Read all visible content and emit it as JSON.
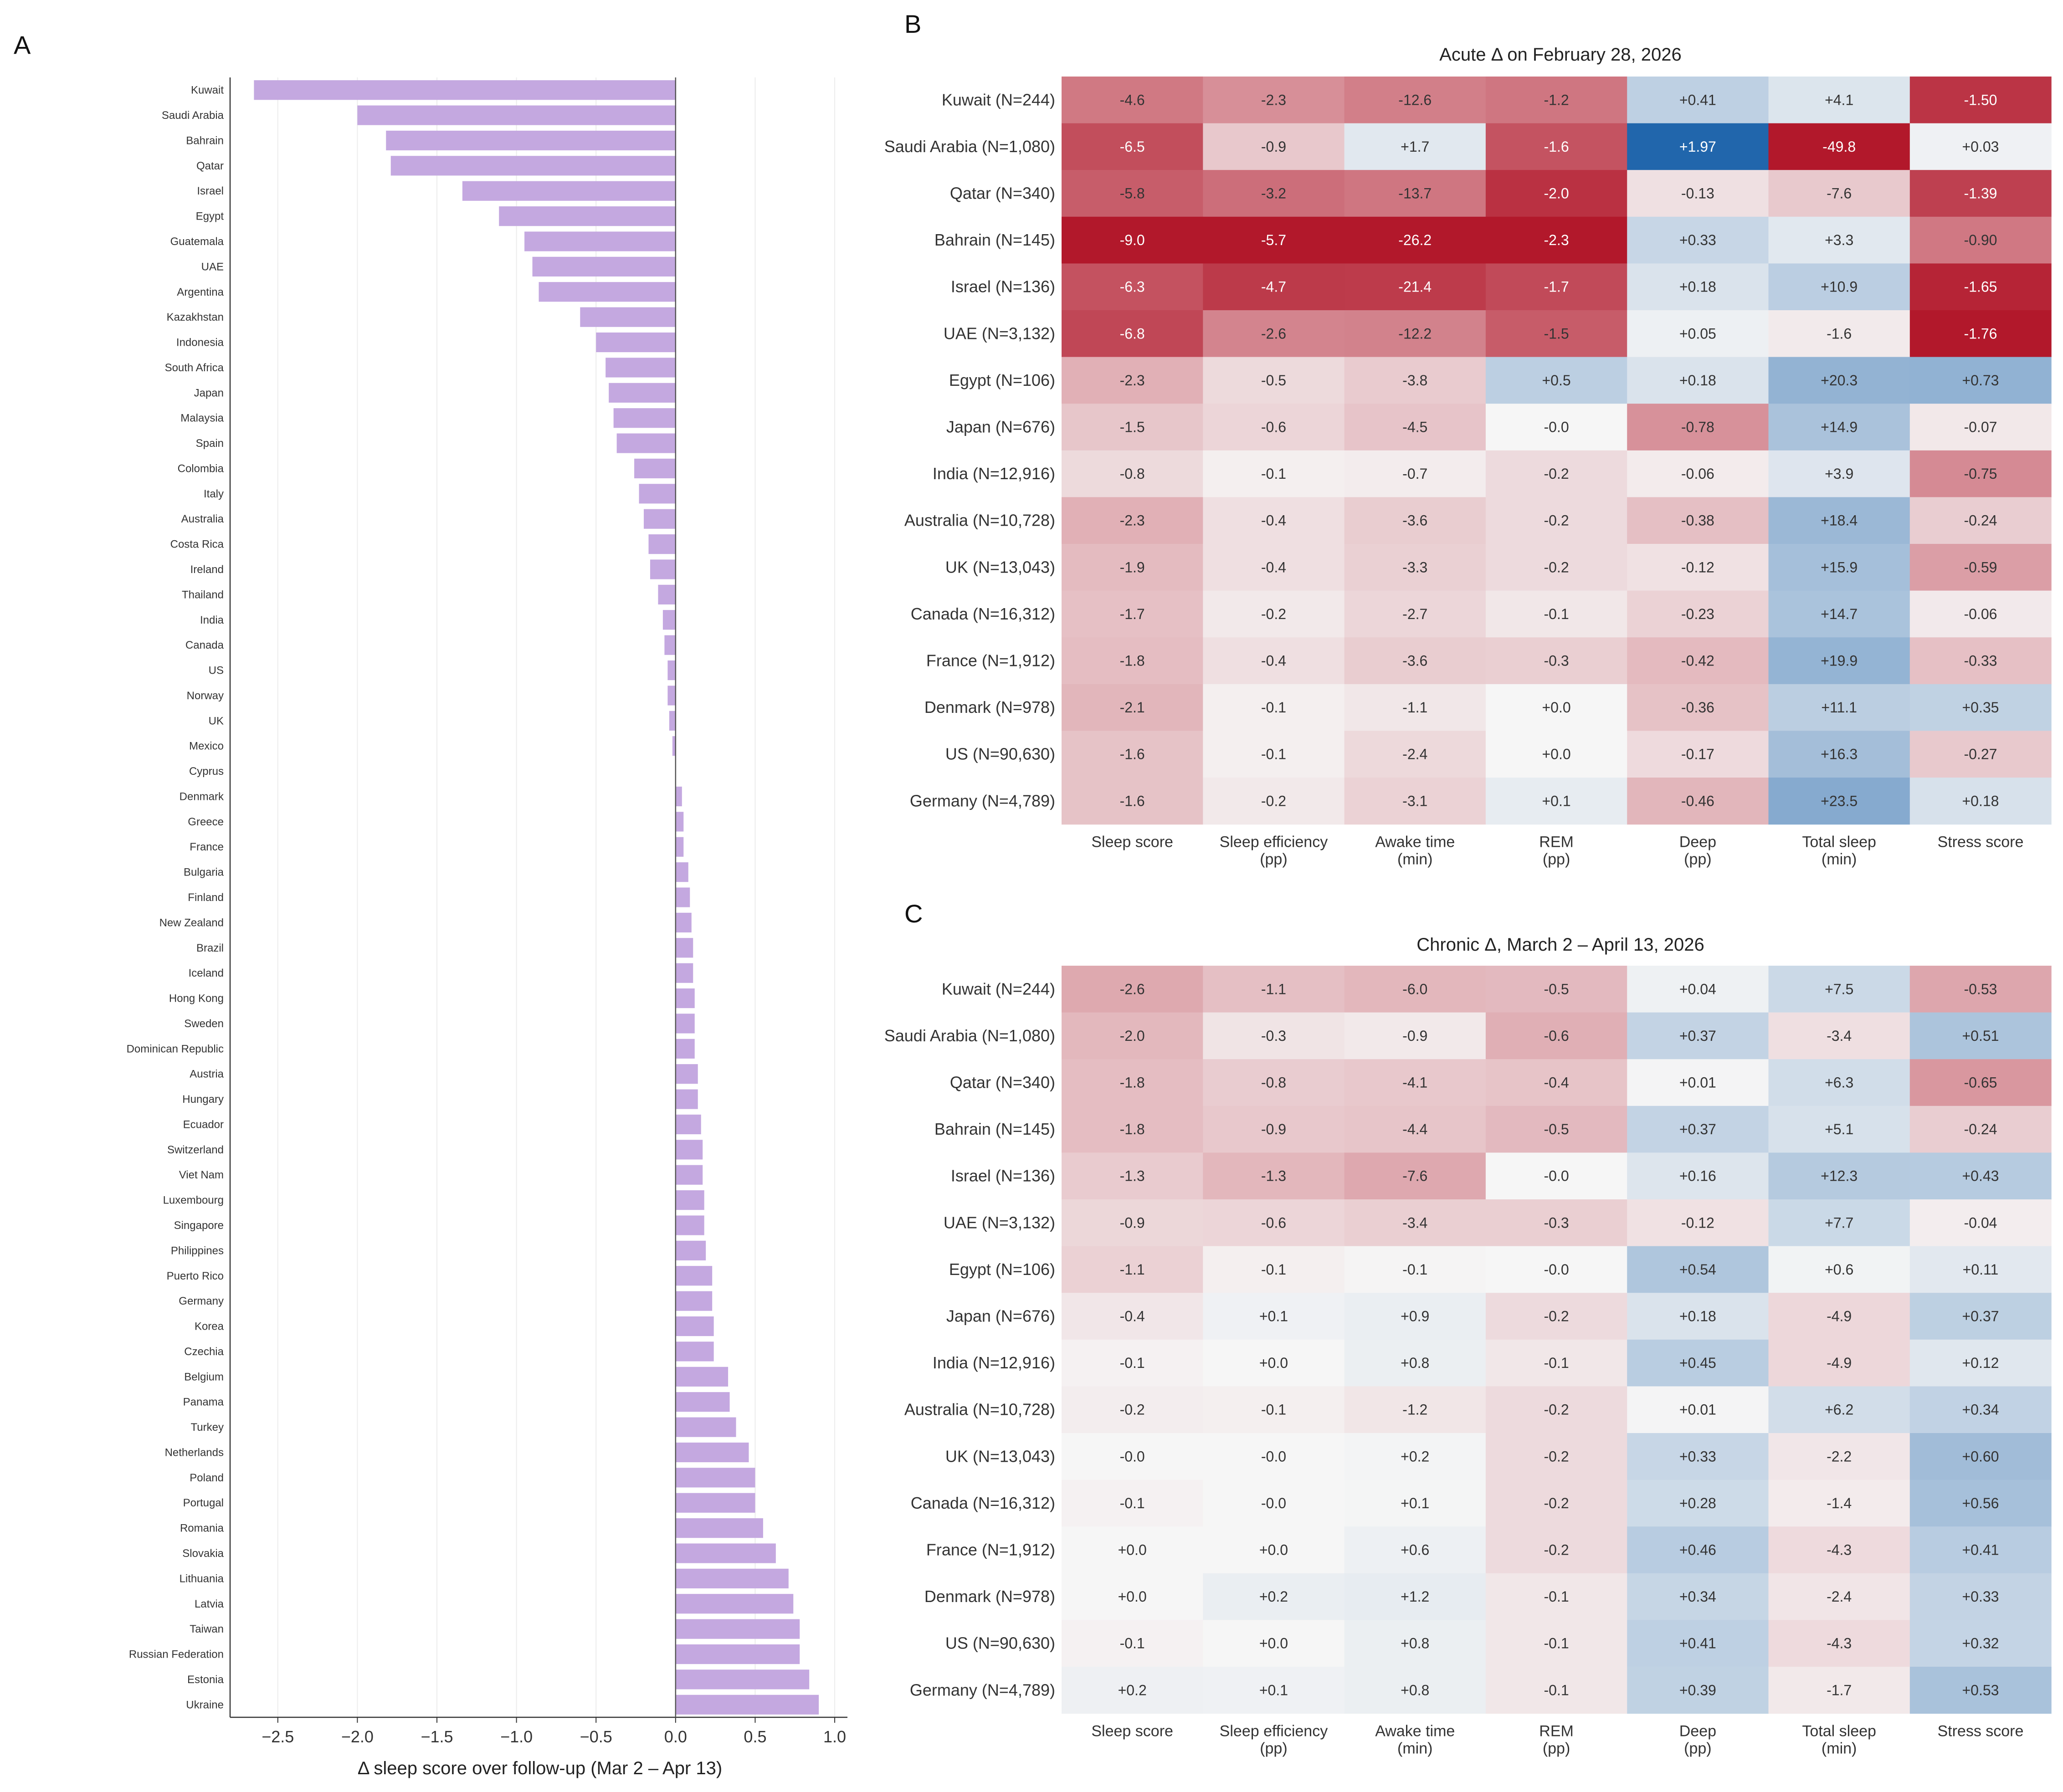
{
  "panels": {
    "a": {
      "label": "A"
    },
    "b": {
      "label": "B"
    },
    "c": {
      "label": "C"
    }
  },
  "chart_data": [
    {
      "type": "bar",
      "orientation": "horizontal",
      "panel": "A",
      "xlabel": "Δ sleep score over follow-up (Mar 2 – Apr 13)",
      "xlim": [
        -2.8,
        1.08
      ],
      "xticks": [
        -2.5,
        -2.0,
        -1.5,
        -1.0,
        -0.5,
        0.0,
        0.5,
        1.0
      ],
      "xtick_labels": [
        "−2.5",
        "−2.0",
        "−1.5",
        "−1.0",
        "−0.5",
        "0.0",
        "0.5",
        "1.0"
      ],
      "bar_color": "#c4a8e0",
      "categories": [
        "Kuwait",
        "Saudi Arabia",
        "Bahrain",
        "Qatar",
        "Israel",
        "Egypt",
        "Guatemala",
        "UAE",
        "Argentina",
        "Kazakhstan",
        "Indonesia",
        "South Africa",
        "Japan",
        "Malaysia",
        "Spain",
        "Colombia",
        "Italy",
        "Australia",
        "Costa Rica",
        "Ireland",
        "Thailand",
        "India",
        "Canada",
        "US",
        "Norway",
        "UK",
        "Mexico",
        "Cyprus",
        "Denmark",
        "Greece",
        "France",
        "Bulgaria",
        "Finland",
        "New Zealand",
        "Brazil",
        "Iceland",
        "Hong Kong",
        "Sweden",
        "Dominican Republic",
        "Austria",
        "Hungary",
        "Ecuador",
        "Switzerland",
        "Viet Nam",
        "Luxembourg",
        "Singapore",
        "Philippines",
        "Puerto Rico",
        "Germany",
        "Korea",
        "Czechia",
        "Belgium",
        "Panama",
        "Turkey",
        "Netherlands",
        "Poland",
        "Portugal",
        "Romania",
        "Slovakia",
        "Lithuania",
        "Latvia",
        "Taiwan",
        "Russian Federation",
        "Estonia",
        "Ukraine"
      ],
      "values": [
        -2.65,
        -2.0,
        -1.82,
        -1.79,
        -1.34,
        -1.11,
        -0.95,
        -0.9,
        -0.86,
        -0.6,
        -0.5,
        -0.44,
        -0.42,
        -0.39,
        -0.37,
        -0.26,
        -0.23,
        -0.2,
        -0.17,
        -0.16,
        -0.11,
        -0.08,
        -0.07,
        -0.05,
        -0.05,
        -0.04,
        -0.02,
        0.0,
        0.04,
        0.05,
        0.05,
        0.08,
        0.09,
        0.1,
        0.11,
        0.11,
        0.12,
        0.12,
        0.12,
        0.14,
        0.14,
        0.16,
        0.17,
        0.17,
        0.18,
        0.18,
        0.19,
        0.23,
        0.23,
        0.24,
        0.24,
        0.33,
        0.34,
        0.38,
        0.46,
        0.5,
        0.5,
        0.55,
        0.63,
        0.71,
        0.74,
        0.78,
        0.78,
        0.84,
        0.9
      ]
    },
    {
      "type": "heatmap",
      "panel": "B",
      "title": "Acute Δ on February 28, 2026",
      "columns": [
        [
          "Sleep score"
        ],
        [
          "Sleep efficiency",
          "(pp)"
        ],
        [
          "Awake time",
          "(min)"
        ],
        [
          "REM",
          "(pp)"
        ],
        [
          "Deep",
          "(pp)"
        ],
        [
          "Total sleep",
          "(min)"
        ],
        [
          "Stress score"
        ]
      ],
      "color_scale_max": [
        9.0,
        5.7,
        26.2,
        2.3,
        1.97,
        49.8,
        1.76
      ],
      "rows": [
        "Kuwait  (N=244)",
        "Saudi Arabia  (N=1,080)",
        "Qatar  (N=340)",
        "Bahrain  (N=145)",
        "Israel  (N=136)",
        "UAE  (N=3,132)",
        "Egypt  (N=106)",
        "Japan  (N=676)",
        "India  (N=12,916)",
        "Australia  (N=10,728)",
        "UK  (N=13,043)",
        "Canada  (N=16,312)",
        "France  (N=1,912)",
        "Denmark  (N=978)",
        "US  (N=90,630)",
        "Germany  (N=4,789)"
      ],
      "values": [
        [
          -4.6,
          -2.3,
          -12.6,
          -1.2,
          0.41,
          4.1,
          -1.5
        ],
        [
          -6.5,
          -0.9,
          1.7,
          -1.6,
          1.97,
          -49.8,
          0.03
        ],
        [
          -5.8,
          -3.2,
          -13.7,
          -2.0,
          -0.13,
          -7.6,
          -1.39
        ],
        [
          -9.0,
          -5.7,
          -26.2,
          -2.3,
          0.33,
          3.3,
          -0.9
        ],
        [
          -6.3,
          -4.7,
          -21.4,
          -1.7,
          0.18,
          10.9,
          -1.65
        ],
        [
          -6.8,
          -2.6,
          -12.2,
          -1.5,
          0.05,
          -1.6,
          -1.76
        ],
        [
          -2.3,
          -0.5,
          -3.8,
          0.5,
          0.18,
          20.3,
          0.73
        ],
        [
          -1.5,
          -0.6,
          -4.5,
          0.0,
          -0.78,
          14.9,
          -0.07
        ],
        [
          -0.8,
          -0.1,
          -0.7,
          -0.2,
          -0.06,
          3.9,
          -0.75
        ],
        [
          -2.3,
          -0.4,
          -3.6,
          -0.2,
          -0.38,
          18.4,
          -0.24
        ],
        [
          -1.9,
          -0.4,
          -3.3,
          -0.2,
          -0.12,
          15.9,
          -0.59
        ],
        [
          -1.7,
          -0.2,
          -2.7,
          -0.1,
          -0.23,
          14.7,
          -0.06
        ],
        [
          -1.8,
          -0.4,
          -3.6,
          -0.3,
          -0.42,
          19.9,
          -0.33
        ],
        [
          -2.1,
          -0.1,
          -1.1,
          0.0,
          -0.36,
          11.1,
          0.35
        ],
        [
          -1.6,
          -0.1,
          -2.4,
          0.0,
          -0.17,
          16.3,
          -0.27
        ],
        [
          -1.6,
          -0.2,
          -3.1,
          0.1,
          -0.46,
          23.5,
          0.18
        ]
      ],
      "labels": [
        [
          "-4.6",
          "-2.3",
          "-12.6",
          "-1.2",
          "+0.41",
          "+4.1",
          "-1.50"
        ],
        [
          "-6.5",
          "-0.9",
          "+1.7",
          "-1.6",
          "+1.97",
          "-49.8",
          "+0.03"
        ],
        [
          "-5.8",
          "-3.2",
          "-13.7",
          "-2.0",
          "-0.13",
          "-7.6",
          "-1.39"
        ],
        [
          "-9.0",
          "-5.7",
          "-26.2",
          "-2.3",
          "+0.33",
          "+3.3",
          "-0.90"
        ],
        [
          "-6.3",
          "-4.7",
          "-21.4",
          "-1.7",
          "+0.18",
          "+10.9",
          "-1.65"
        ],
        [
          "-6.8",
          "-2.6",
          "-12.2",
          "-1.5",
          "+0.05",
          "-1.6",
          "-1.76"
        ],
        [
          "-2.3",
          "-0.5",
          "-3.8",
          "+0.5",
          "+0.18",
          "+20.3",
          "+0.73"
        ],
        [
          "-1.5",
          "-0.6",
          "-4.5",
          "-0.0",
          "-0.78",
          "+14.9",
          "-0.07"
        ],
        [
          "-0.8",
          "-0.1",
          "-0.7",
          "-0.2",
          "-0.06",
          "+3.9",
          "-0.75"
        ],
        [
          "-2.3",
          "-0.4",
          "-3.6",
          "-0.2",
          "-0.38",
          "+18.4",
          "-0.24"
        ],
        [
          "-1.9",
          "-0.4",
          "-3.3",
          "-0.2",
          "-0.12",
          "+15.9",
          "-0.59"
        ],
        [
          "-1.7",
          "-0.2",
          "-2.7",
          "-0.1",
          "-0.23",
          "+14.7",
          "-0.06"
        ],
        [
          "-1.8",
          "-0.4",
          "-3.6",
          "-0.3",
          "-0.42",
          "+19.9",
          "-0.33"
        ],
        [
          "-2.1",
          "-0.1",
          "-1.1",
          "+0.0",
          "-0.36",
          "+11.1",
          "+0.35"
        ],
        [
          "-1.6",
          "-0.1",
          "-2.4",
          "+0.0",
          "-0.17",
          "+16.3",
          "-0.27"
        ],
        [
          "-1.6",
          "-0.2",
          "-3.1",
          "+0.1",
          "-0.46",
          "+23.5",
          "+0.18"
        ]
      ]
    },
    {
      "type": "heatmap",
      "panel": "C",
      "title": "Chronic Δ, March 2 – April 13, 2026",
      "columns": [
        [
          "Sleep score"
        ],
        [
          "Sleep efficiency",
          "(pp)"
        ],
        [
          "Awake time",
          "(min)"
        ],
        [
          "REM",
          "(pp)"
        ],
        [
          "Deep",
          "(pp)"
        ],
        [
          "Total sleep",
          "(min)"
        ],
        [
          "Stress score"
        ]
      ],
      "color_scale_max": [
        9.0,
        5.7,
        26.2,
        2.3,
        1.97,
        49.8,
        1.76
      ],
      "rows": [
        "Kuwait  (N=244)",
        "Saudi Arabia  (N=1,080)",
        "Qatar  (N=340)",
        "Bahrain  (N=145)",
        "Israel  (N=136)",
        "UAE  (N=3,132)",
        "Egypt  (N=106)",
        "Japan  (N=676)",
        "India  (N=12,916)",
        "Australia  (N=10,728)",
        "UK  (N=13,043)",
        "Canada  (N=16,312)",
        "France  (N=1,912)",
        "Denmark  (N=978)",
        "US  (N=90,630)",
        "Germany  (N=4,789)"
      ],
      "values": [
        [
          -2.6,
          -1.1,
          -6.0,
          -0.5,
          0.04,
          7.5,
          -0.53
        ],
        [
          -2.0,
          -0.3,
          -0.9,
          -0.6,
          0.37,
          -3.4,
          0.51
        ],
        [
          -1.8,
          -0.8,
          -4.1,
          -0.4,
          0.01,
          6.3,
          -0.65
        ],
        [
          -1.8,
          -0.9,
          -4.4,
          -0.5,
          0.37,
          5.1,
          -0.24
        ],
        [
          -1.3,
          -1.3,
          -7.6,
          0.0,
          0.16,
          12.3,
          0.43
        ],
        [
          -0.9,
          -0.6,
          -3.4,
          -0.3,
          -0.12,
          7.7,
          -0.04
        ],
        [
          -1.1,
          -0.1,
          -0.1,
          0.0,
          0.54,
          0.6,
          0.11
        ],
        [
          -0.4,
          0.1,
          0.9,
          -0.2,
          0.18,
          -4.9,
          0.37
        ],
        [
          -0.1,
          0.0,
          0.8,
          -0.1,
          0.45,
          -4.9,
          0.12
        ],
        [
          -0.2,
          -0.1,
          -1.2,
          -0.2,
          0.01,
          6.2,
          0.34
        ],
        [
          0.0,
          0.0,
          0.2,
          -0.2,
          0.33,
          -2.2,
          0.6
        ],
        [
          -0.1,
          0.0,
          0.1,
          -0.2,
          0.28,
          -1.4,
          0.56
        ],
        [
          0.0,
          0.0,
          0.6,
          -0.2,
          0.46,
          -4.3,
          0.41
        ],
        [
          0.0,
          0.2,
          1.2,
          -0.1,
          0.34,
          -2.4,
          0.33
        ],
        [
          -0.1,
          0.0,
          0.8,
          -0.1,
          0.41,
          -4.3,
          0.32
        ],
        [
          0.2,
          0.1,
          0.8,
          -0.1,
          0.39,
          -1.7,
          0.53
        ]
      ],
      "labels": [
        [
          "-2.6",
          "-1.1",
          "-6.0",
          "-0.5",
          "+0.04",
          "+7.5",
          "-0.53"
        ],
        [
          "-2.0",
          "-0.3",
          "-0.9",
          "-0.6",
          "+0.37",
          "-3.4",
          "+0.51"
        ],
        [
          "-1.8",
          "-0.8",
          "-4.1",
          "-0.4",
          "+0.01",
          "+6.3",
          "-0.65"
        ],
        [
          "-1.8",
          "-0.9",
          "-4.4",
          "-0.5",
          "+0.37",
          "+5.1",
          "-0.24"
        ],
        [
          "-1.3",
          "-1.3",
          "-7.6",
          "-0.0",
          "+0.16",
          "+12.3",
          "+0.43"
        ],
        [
          "-0.9",
          "-0.6",
          "-3.4",
          "-0.3",
          "-0.12",
          "+7.7",
          "-0.04"
        ],
        [
          "-1.1",
          "-0.1",
          "-0.1",
          "-0.0",
          "+0.54",
          "+0.6",
          "+0.11"
        ],
        [
          "-0.4",
          "+0.1",
          "+0.9",
          "-0.2",
          "+0.18",
          "-4.9",
          "+0.37"
        ],
        [
          "-0.1",
          "+0.0",
          "+0.8",
          "-0.1",
          "+0.45",
          "-4.9",
          "+0.12"
        ],
        [
          "-0.2",
          "-0.1",
          "-1.2",
          "-0.2",
          "+0.01",
          "+6.2",
          "+0.34"
        ],
        [
          "-0.0",
          "-0.0",
          "+0.2",
          "-0.2",
          "+0.33",
          "-2.2",
          "+0.60"
        ],
        [
          "-0.1",
          "-0.0",
          "+0.1",
          "-0.2",
          "+0.28",
          "-1.4",
          "+0.56"
        ],
        [
          "+0.0",
          "+0.0",
          "+0.6",
          "-0.2",
          "+0.46",
          "-4.3",
          "+0.41"
        ],
        [
          "+0.0",
          "+0.2",
          "+1.2",
          "-0.1",
          "+0.34",
          "-2.4",
          "+0.33"
        ],
        [
          "-0.1",
          "+0.0",
          "+0.8",
          "-0.1",
          "+0.41",
          "-4.3",
          "+0.32"
        ],
        [
          "+0.2",
          "+0.1",
          "+0.8",
          "-0.1",
          "+0.39",
          "-1.7",
          "+0.53"
        ]
      ]
    }
  ]
}
